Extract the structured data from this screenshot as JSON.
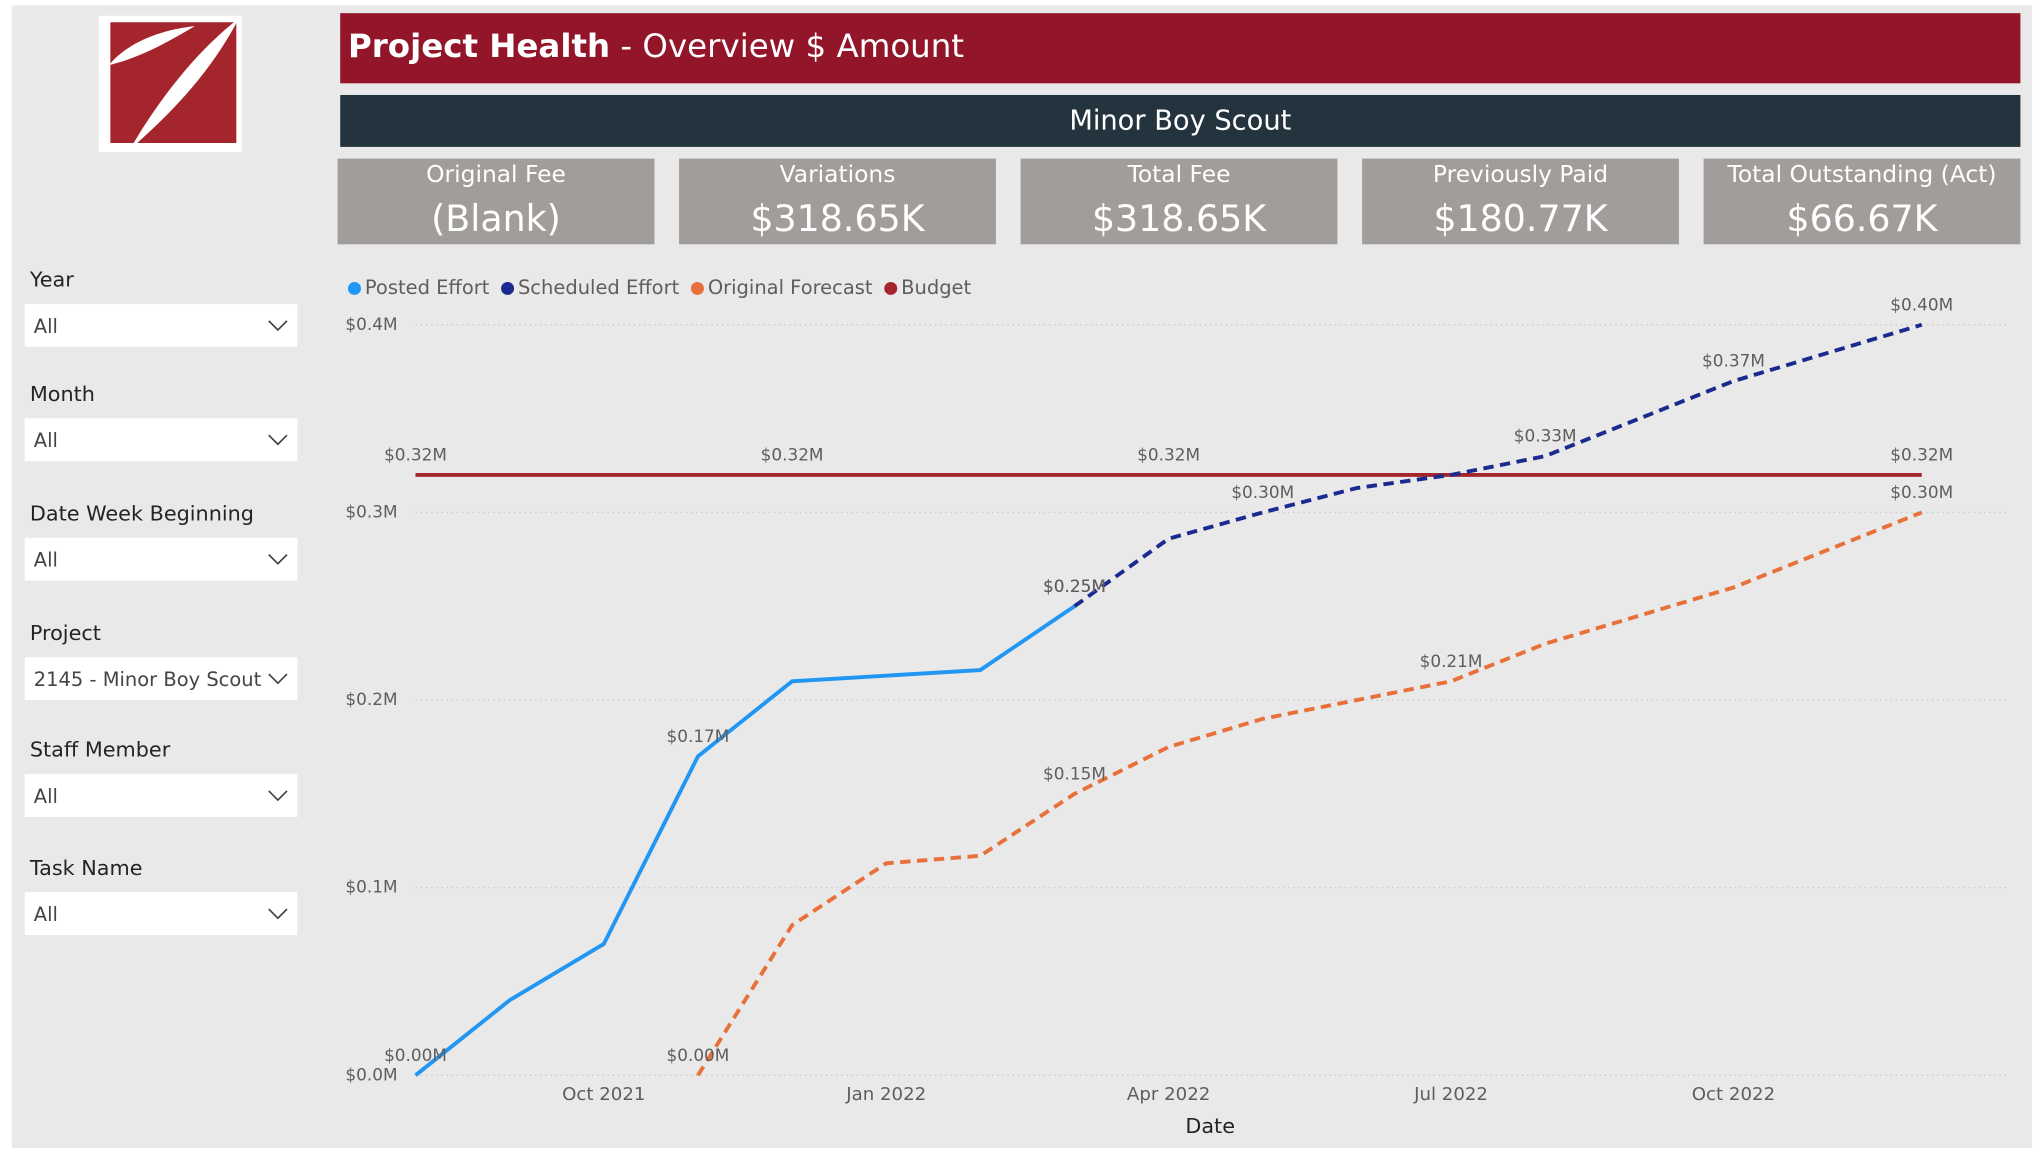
{
  "header": {
    "title_bold": "Project Health",
    "title_rest": "- Overview $ Amount",
    "subtitle": "Minor Boy Scout"
  },
  "cards": [
    {
      "label": "Original Fee",
      "value": "(Blank)"
    },
    {
      "label": "Variations",
      "value": "$318.65K"
    },
    {
      "label": "Total Fee",
      "value": "$318.65K"
    },
    {
      "label": "Previously Paid",
      "value": "$180.77K"
    },
    {
      "label": "Total Outstanding (Act)",
      "value": "$66.67K"
    }
  ],
  "filters": [
    {
      "label": "Year",
      "value": "All"
    },
    {
      "label": "Month",
      "value": "All"
    },
    {
      "label": "Date Week Beginning",
      "value": "All"
    },
    {
      "label": "Project",
      "value": "2145 - Minor Boy Scout"
    },
    {
      "label": "Staff Member",
      "value": "All"
    },
    {
      "label": "Task Name",
      "value": "All"
    }
  ],
  "chart_data": {
    "type": "line",
    "x_label": "Date",
    "x": [
      "Aug 2021",
      "Sep 2021",
      "Oct 2021",
      "Nov 2021",
      "Dec 2021",
      "Jan 2022",
      "Feb 2022",
      "Mar 2022",
      "Apr 2022",
      "May 2022",
      "Jun 2022",
      "Jul 2022",
      "Aug 2022",
      "Sep 2022",
      "Oct 2022",
      "Nov 2022",
      "Dec 2022"
    ],
    "xticks": [
      "Oct 2021",
      "Jan 2022",
      "Apr 2022",
      "Jul 2022",
      "Oct 2022"
    ],
    "ylim": [
      0,
      0.4
    ],
    "yticks": [
      {
        "value": 0,
        "label": "$0.0M"
      },
      {
        "value": 0.1,
        "label": "$0.1M"
      },
      {
        "value": 0.2,
        "label": "$0.2M"
      },
      {
        "value": 0.3,
        "label": "$0.3M"
      },
      {
        "value": 0.4,
        "label": "$0.4M"
      }
    ],
    "grid": true,
    "series": [
      {
        "name": "Posted Effort",
        "color": "#2196f3",
        "style": "solid",
        "values": [
          0.0,
          0.04,
          0.07,
          0.17,
          0.21,
          0.213,
          0.216,
          0.25,
          null,
          null,
          null,
          null,
          null,
          null,
          null,
          null,
          null
        ],
        "value_labels": [
          "$0.00M",
          null,
          null,
          "$0.17M",
          null,
          null,
          null,
          "$0.25M",
          null,
          null,
          null,
          null,
          null,
          null,
          null,
          null,
          null
        ]
      },
      {
        "name": "Scheduled Effort",
        "color": "#1b2a8f",
        "style": "dashed",
        "values": [
          null,
          null,
          null,
          null,
          null,
          null,
          null,
          0.25,
          0.286,
          0.3,
          0.313,
          0.32,
          0.33,
          0.35,
          0.37,
          0.385,
          0.4
        ],
        "value_labels": [
          null,
          null,
          null,
          null,
          null,
          null,
          null,
          "$0.25M",
          null,
          "$0.30M",
          null,
          null,
          "$0.33M",
          null,
          "$0.37M",
          null,
          "$0.40M"
        ]
      },
      {
        "name": "Original Forecast",
        "color": "#e8703a",
        "style": "dashed",
        "values": [
          null,
          null,
          null,
          0.0,
          0.08,
          0.113,
          0.117,
          0.15,
          0.175,
          0.19,
          0.2,
          0.21,
          0.23,
          0.245,
          0.26,
          0.28,
          0.3
        ],
        "value_labels": [
          null,
          null,
          null,
          "$0.00M",
          null,
          null,
          null,
          "$0.15M",
          null,
          null,
          null,
          "$0.21M",
          null,
          null,
          null,
          null,
          "$0.30M"
        ]
      },
      {
        "name": "Budget",
        "color": "#a4262c",
        "style": "solid",
        "values": [
          0.32,
          0.32,
          0.32,
          0.32,
          0.32,
          0.32,
          0.32,
          0.32,
          0.32,
          0.32,
          0.32,
          0.32,
          0.32,
          0.32,
          0.32,
          0.32,
          0.32
        ],
        "value_labels": [
          "$0.32M",
          null,
          null,
          null,
          "$0.32M",
          null,
          null,
          null,
          "$0.32M",
          null,
          null,
          null,
          null,
          null,
          null,
          null,
          "$0.32M"
        ]
      }
    ]
  }
}
